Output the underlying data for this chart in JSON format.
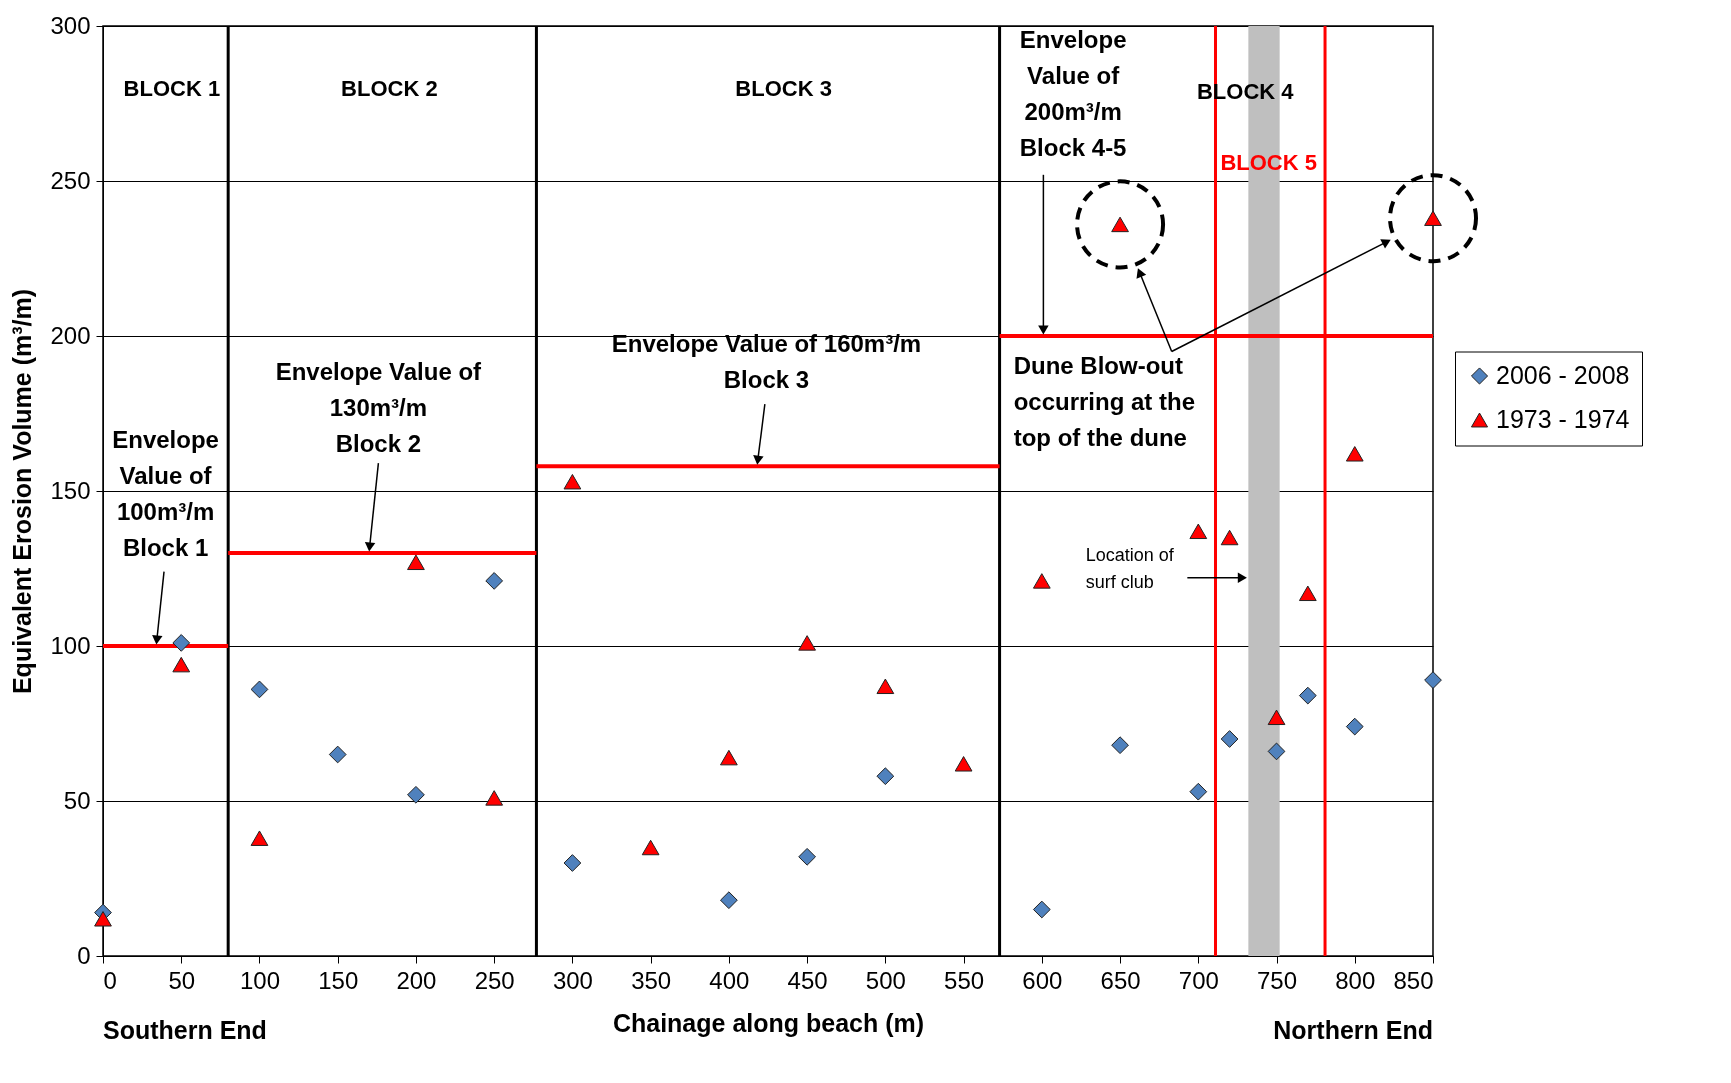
{
  "chart_data": {
    "type": "scatter",
    "xlabel": "Chainage along beach (m)",
    "ylabel": "Equivalent Erosion Volume (m³/m)",
    "xlim": [
      0,
      850
    ],
    "xticks": [
      0,
      50,
      100,
      150,
      200,
      250,
      300,
      350,
      400,
      450,
      500,
      550,
      600,
      650,
      700,
      750,
      800,
      850
    ],
    "ylim": [
      0,
      300
    ],
    "yticks": [
      0,
      50,
      100,
      150,
      200,
      250,
      300
    ],
    "grid": "y",
    "legend": "right",
    "series": [
      {
        "name": "2006 - 2008",
        "marker": "diamond",
        "color": "#4f81bd",
        "x": [
          0,
          50,
          100,
          150,
          200,
          250,
          300,
          400,
          450,
          500,
          600,
          650,
          700,
          720,
          750,
          770,
          800,
          850
        ],
        "values": [
          14,
          101,
          86,
          65,
          52,
          121,
          30,
          18,
          32,
          58,
          15,
          68,
          53,
          70,
          66,
          84,
          74,
          89
        ]
      },
      {
        "name": "1973 - 1974",
        "marker": "triangle",
        "color": "#ff0000",
        "x": [
          0,
          50,
          100,
          200,
          250,
          300,
          350,
          400,
          450,
          500,
          550,
          600,
          650,
          700,
          720,
          750,
          770,
          800,
          850
        ],
        "values": [
          12,
          94,
          38,
          127,
          51,
          153,
          35,
          64,
          101,
          87,
          62,
          121,
          236,
          137,
          135,
          77,
          117,
          162,
          238
        ]
      },
      {
        "type": "line",
        "marker": "none",
        "line_style": "solid",
        "color": "#ff0000",
        "x": [
          0,
          80
        ],
        "values": [
          100,
          100
        ]
      },
      {
        "type": "line",
        "marker": "none",
        "line_style": "solid",
        "color": "#ff0000",
        "x": [
          80,
          277
        ],
        "values": [
          130,
          130
        ]
      },
      {
        "type": "line",
        "marker": "none",
        "line_style": "solid",
        "color": "#ff0000",
        "x": [
          277,
          573
        ],
        "values": [
          158,
          158
        ]
      },
      {
        "type": "line",
        "marker": "none",
        "line_style": "solid",
        "color": "#ff0000",
        "x": [
          573,
          850
        ],
        "values": [
          200,
          200
        ]
      }
    ],
    "ref_lines": [
      {
        "axis": "x",
        "value": 80,
        "color": "#000000"
      },
      {
        "axis": "x",
        "value": 277,
        "color": "#000000"
      },
      {
        "axis": "x",
        "value": 573,
        "color": "#000000"
      },
      {
        "axis": "x",
        "value": 711,
        "color": "#ff0000"
      },
      {
        "axis": "x",
        "value": 781,
        "color": "#ff0000"
      }
    ],
    "bands": [
      {
        "axis": "x",
        "from": 732,
        "to": 752,
        "color": "#bfbfbf"
      }
    ],
    "annotations": [
      "BLOCK 1",
      "BLOCK 2",
      "BLOCK 3",
      "BLOCK 4",
      "BLOCK 5",
      {
        "text": "Envelope\nValue of\n100m³/m\nBlock 1",
        "x": 34,
        "y": 100
      },
      {
        "text": "Envelope Value of\n130m³/m\nBlock 2",
        "x": 170,
        "y": 130
      },
      {
        "text": "Envelope Value of 160m³/m\nBlock 3",
        "x": 418,
        "y": 158
      },
      {
        "text": "Envelope\nValue of\n200m³/m\nBlock 4-5",
        "x": 601,
        "y": 200
      },
      "Dune Blow-out\noccurring at the\ntop of the dune",
      {
        "text": "Location of\nsurf club",
        "x": 732,
        "y": 122
      },
      "Southern End",
      "Northern End"
    ]
  }
}
